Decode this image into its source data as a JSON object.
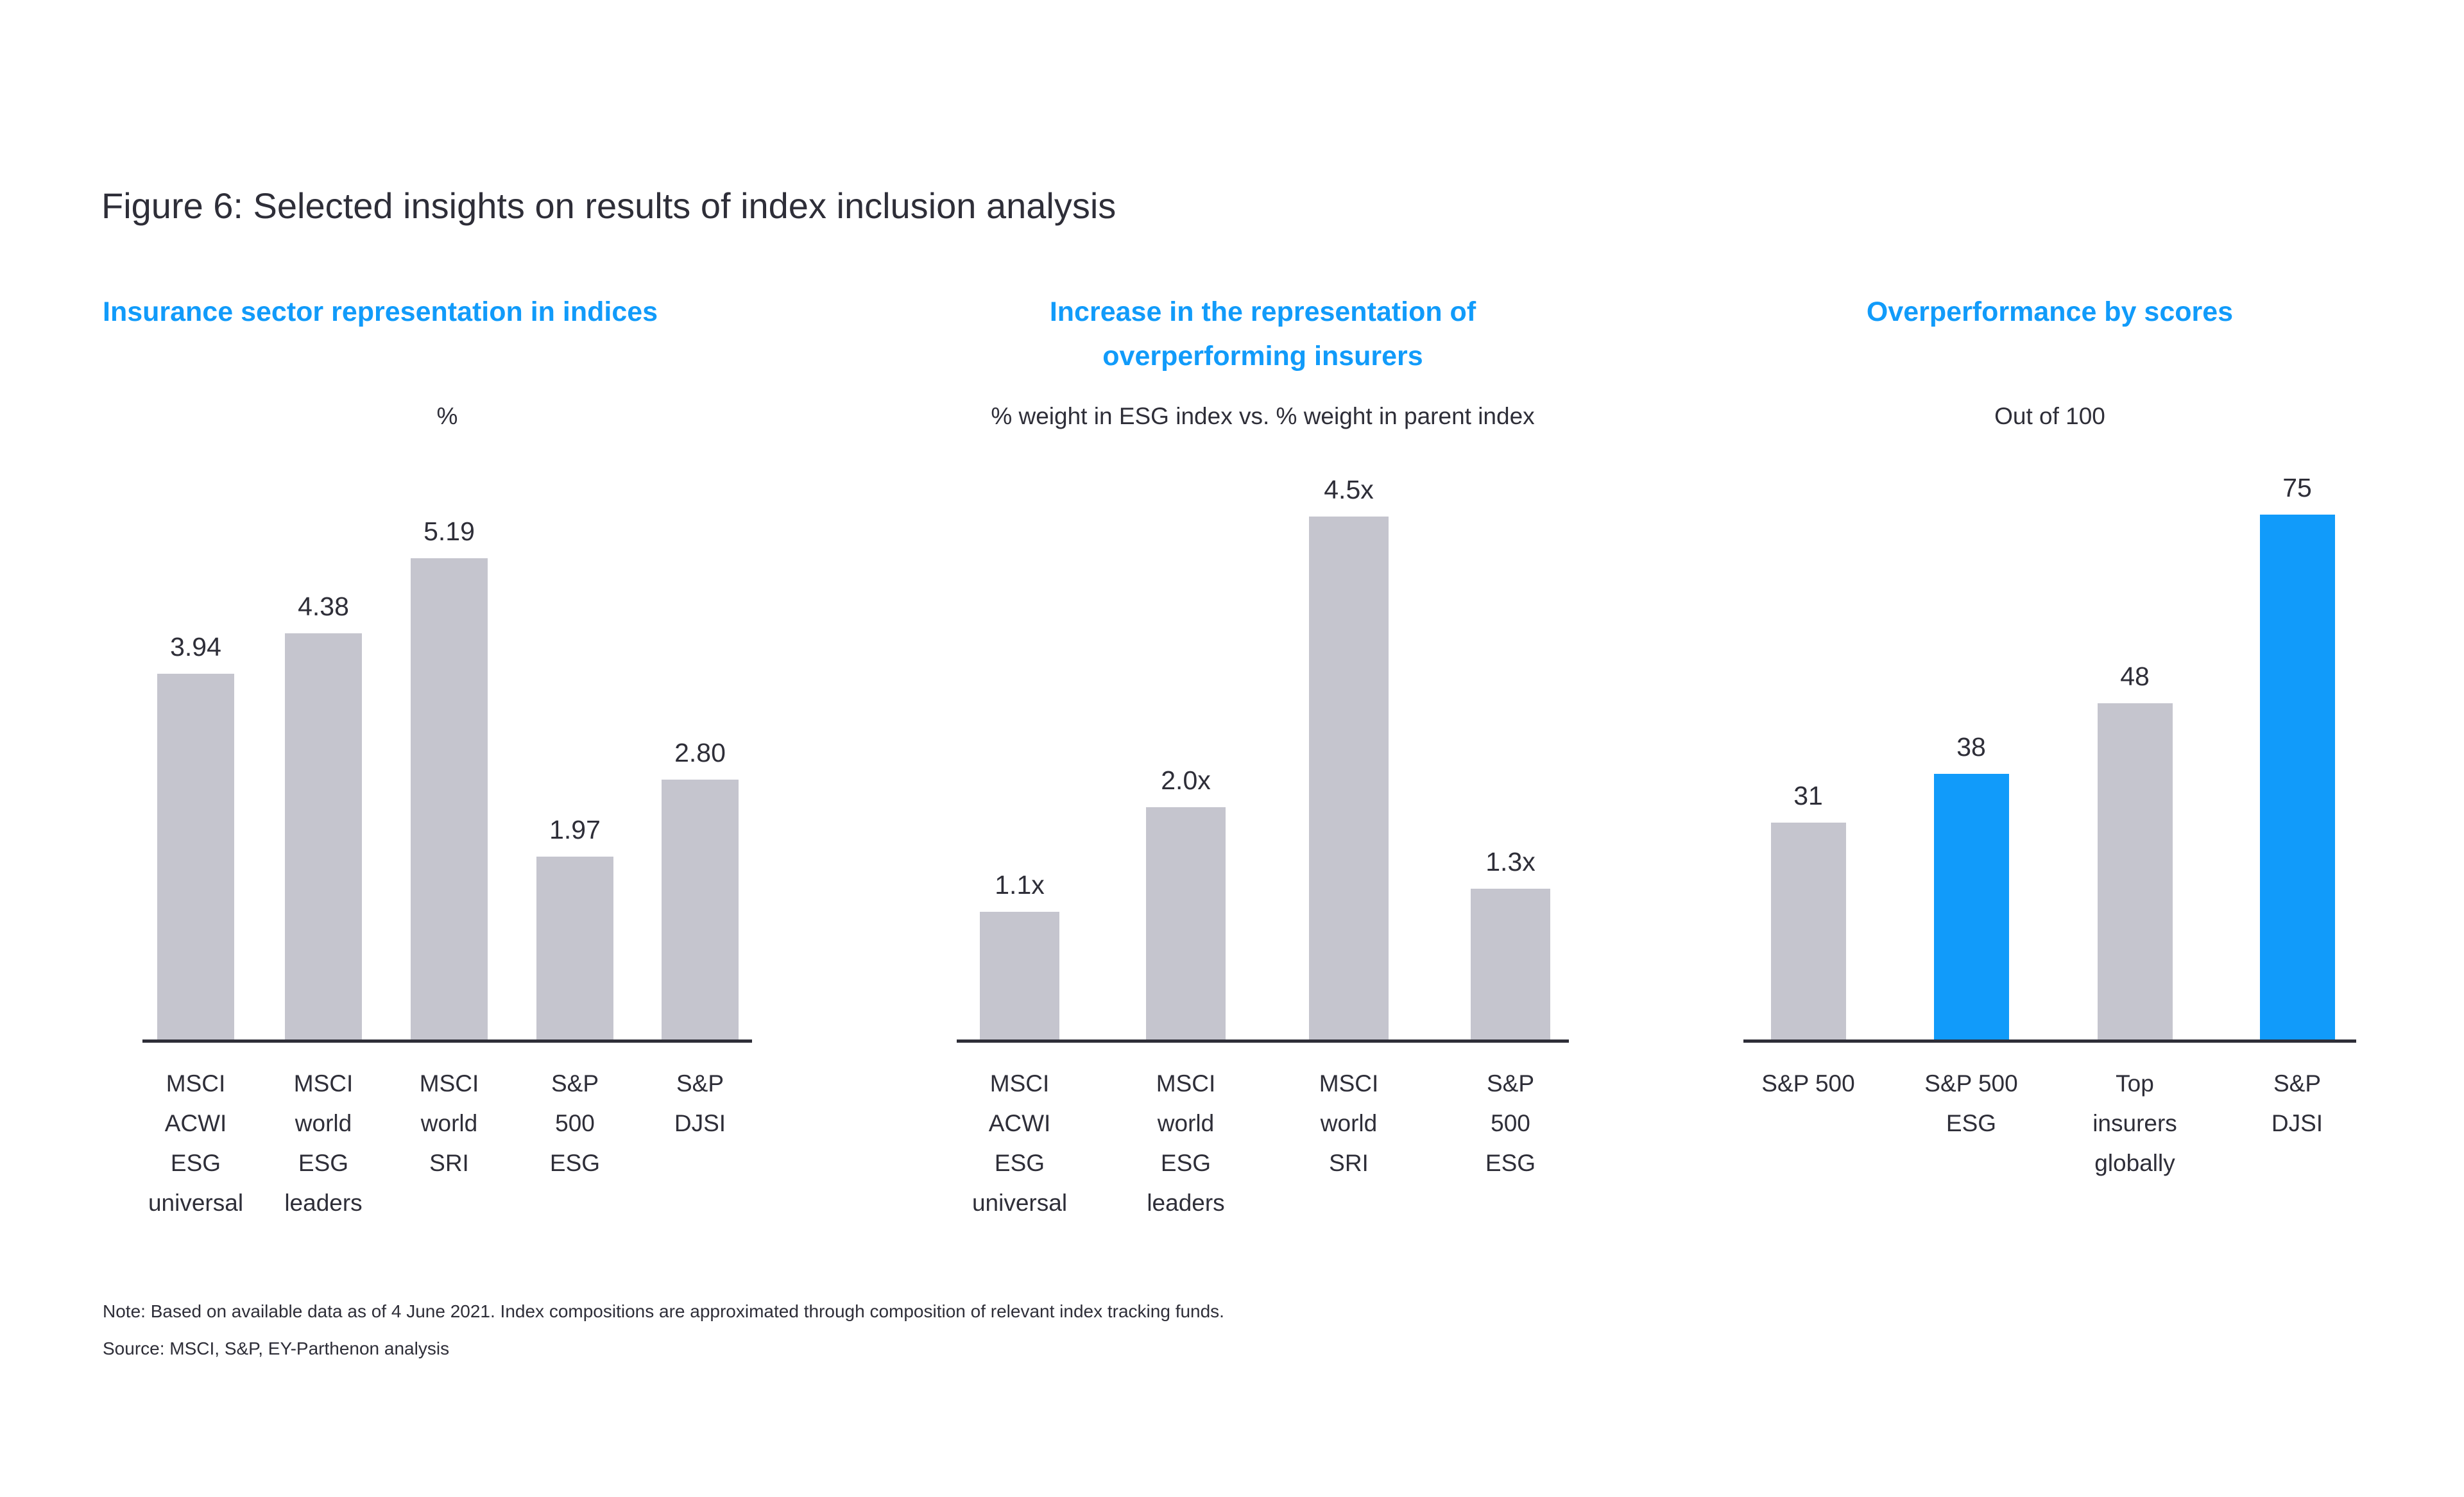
{
  "figure": {
    "title": "Figure 6: Selected insights on results of index inclusion analysis",
    "note": "Note: Based on available data as of 4 June 2021. Index compositions are approximated through composition of relevant index tracking funds.",
    "source": "Source: MSCI, S&P, EY-Parthenon analysis"
  },
  "colors": {
    "accent_blue": "#119BFA",
    "bar_gray": "#C5C5CE",
    "text_dark": "#2E2E38"
  },
  "chart_data": [
    {
      "type": "bar",
      "title": "Insurance sector representation in indices",
      "subtitle": "%",
      "categories": [
        "MSCI\nACWI\nESG\nuniversal",
        "MSCI\nworld\nESG\nleaders",
        "MSCI\nworld\nSRI",
        "S&P\n500\nESG",
        "S&P\nDJSI"
      ],
      "values": [
        3.94,
        4.38,
        5.19,
        1.97,
        2.8
      ],
      "value_labels": [
        "3.94",
        "4.38",
        "5.19",
        "1.97",
        "2.80"
      ],
      "highlighted": [
        false,
        false,
        false,
        false,
        false
      ],
      "ylim": [
        0,
        5.19
      ],
      "grid": false,
      "legend": "none"
    },
    {
      "type": "bar",
      "title": "Increase in the representation of\noverperforming insurers",
      "subtitle": "% weight in ESG index vs. % weight in parent index",
      "categories": [
        "MSCI\nACWI\nESG\nuniversal",
        "MSCI\nworld\nESG\nleaders",
        "MSCI\nworld\nSRI",
        "S&P\n500\nESG"
      ],
      "values": [
        1.1,
        2.0,
        4.5,
        1.3
      ],
      "value_labels": [
        "1.1x",
        "2.0x",
        "4.5x",
        "1.3x"
      ],
      "highlighted": [
        false,
        false,
        false,
        false
      ],
      "ylim": [
        0,
        4.5
      ],
      "grid": false,
      "legend": "none"
    },
    {
      "type": "bar",
      "title": "Overperformance by scores",
      "subtitle": "Out of 100",
      "categories": [
        "S&P 500",
        "S&P 500\nESG",
        "Top\ninsurers\nglobally",
        "S&P\nDJSI"
      ],
      "values": [
        31,
        38,
        48,
        75
      ],
      "value_labels": [
        "31",
        "38",
        "48",
        "75"
      ],
      "highlighted": [
        false,
        true,
        false,
        true
      ],
      "ylim": [
        0,
        75
      ],
      "grid": false,
      "legend": "none"
    }
  ]
}
